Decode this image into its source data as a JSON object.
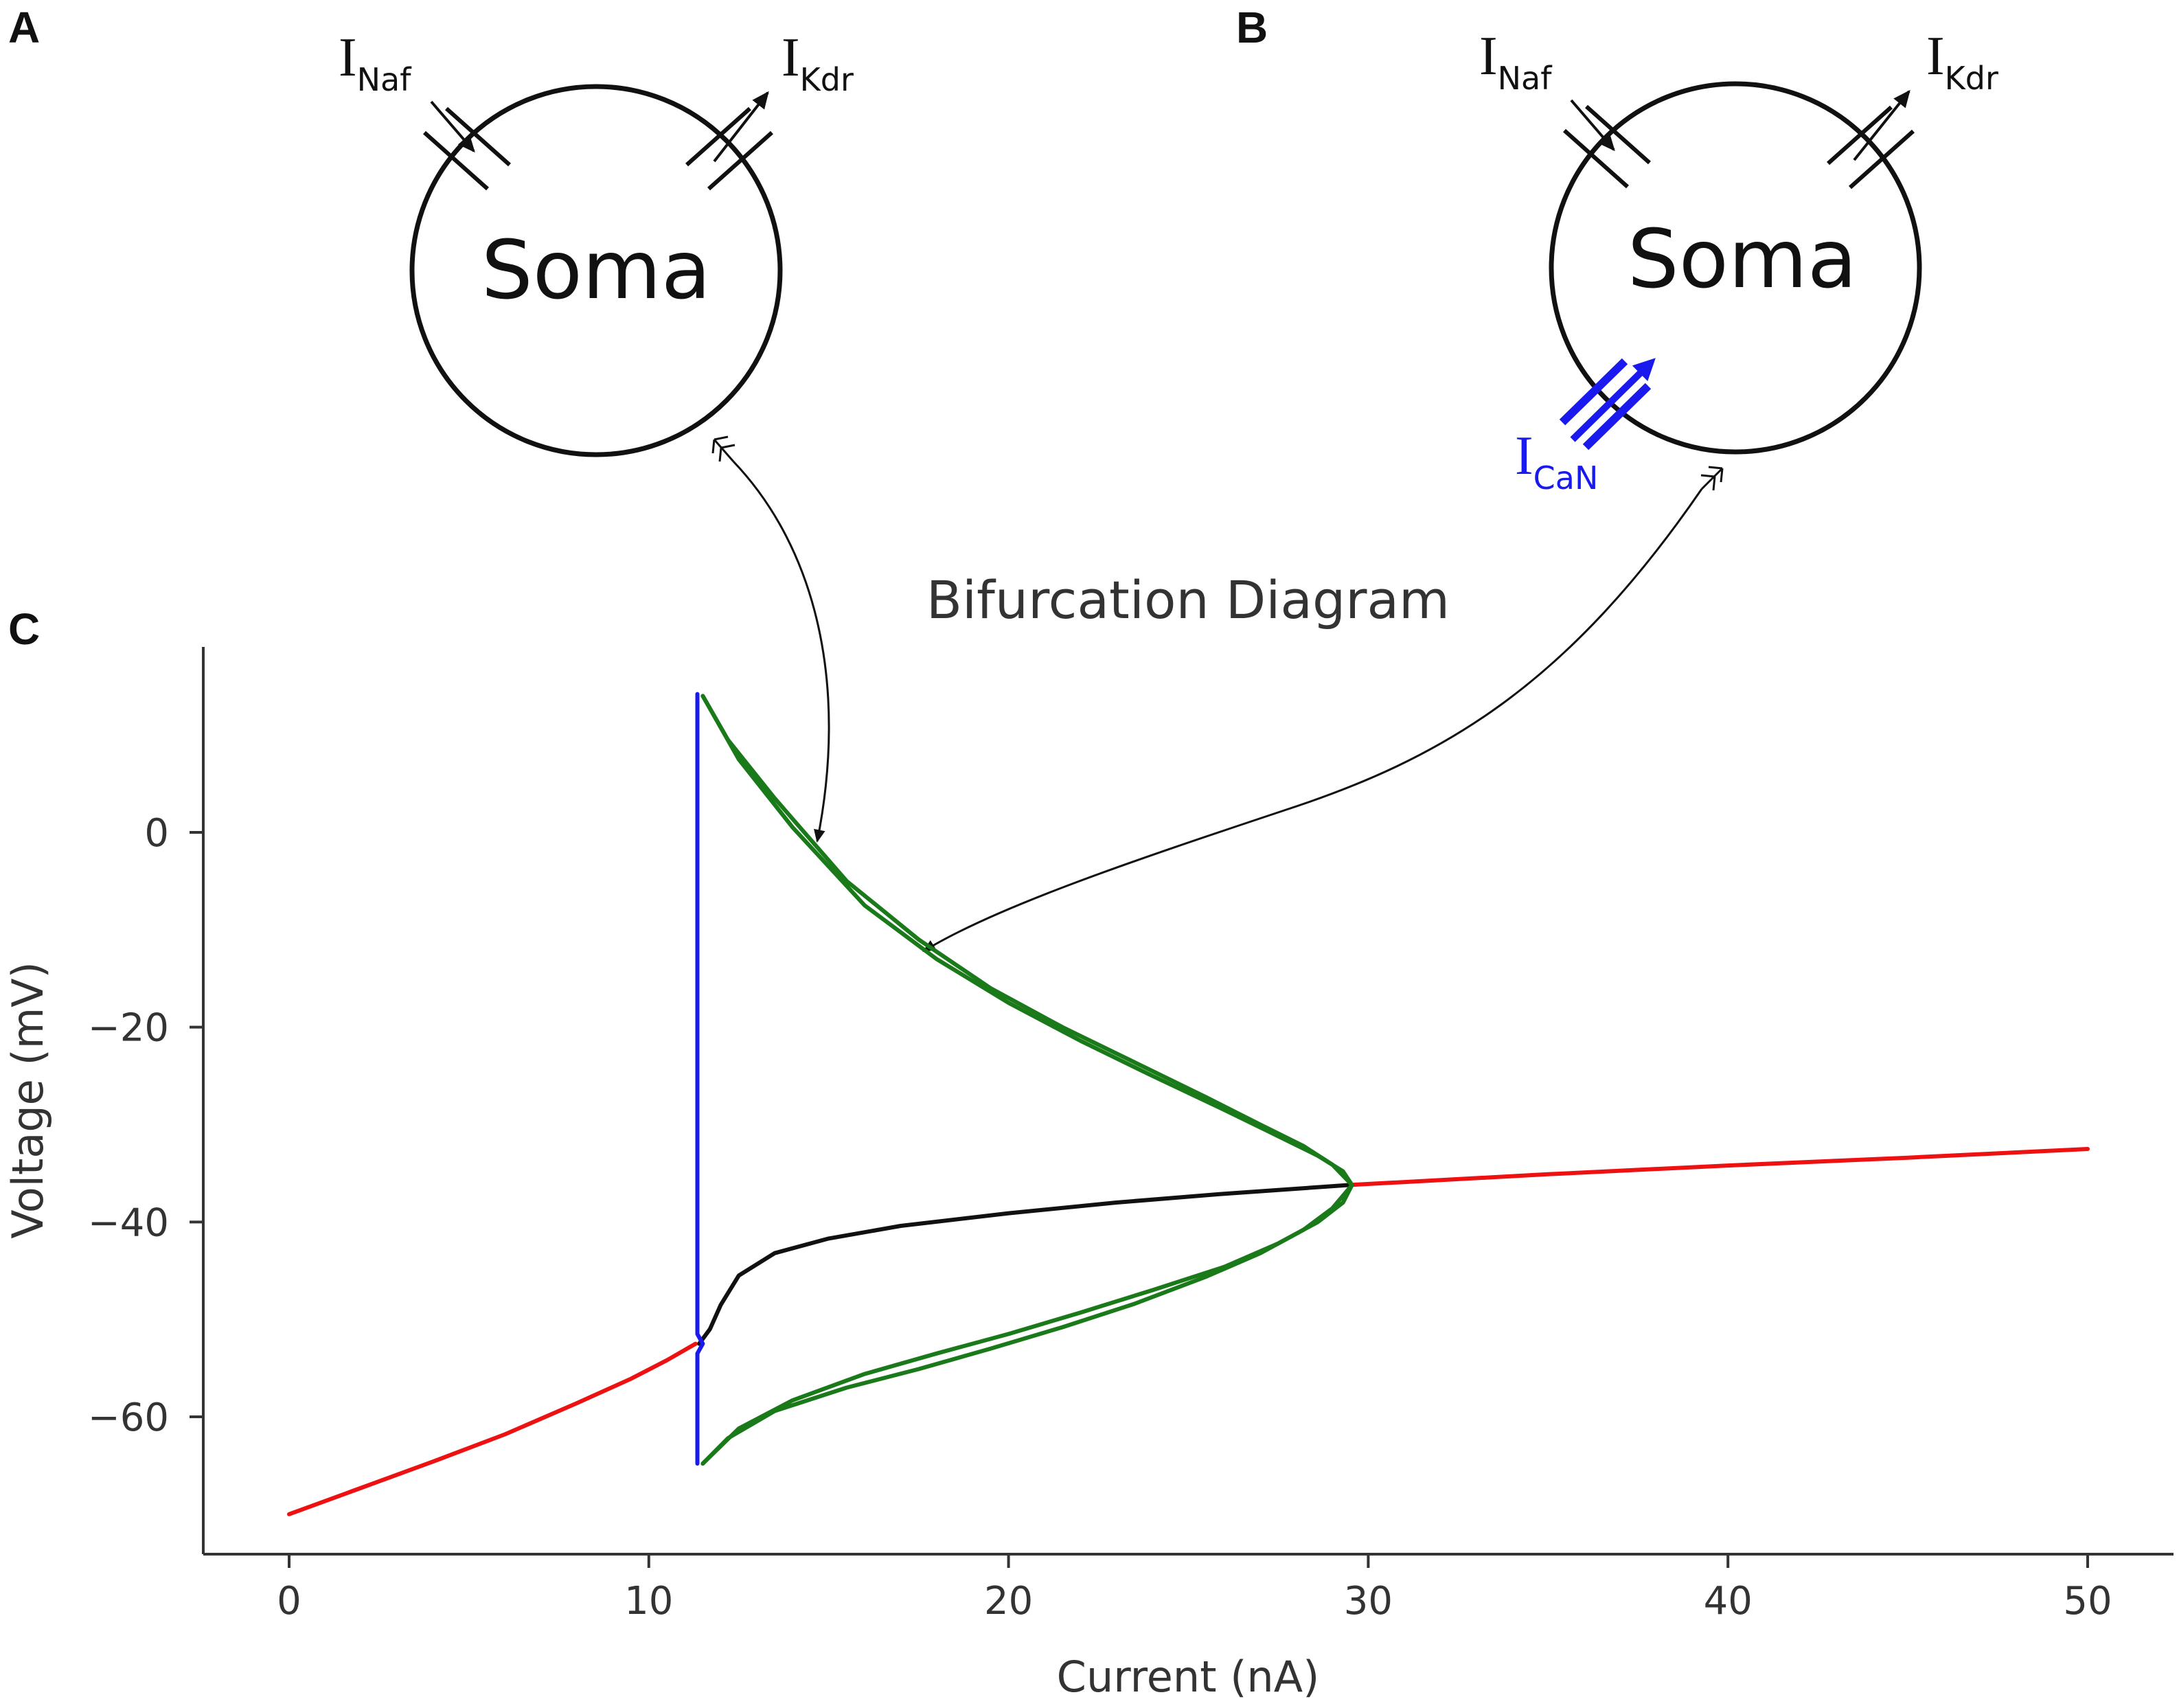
{
  "panels": {
    "a": {
      "letter": "A",
      "soma_label": "Soma",
      "currents": [
        {
          "main": "I",
          "sub": "Naf"
        },
        {
          "main": "I",
          "sub": "Kdr"
        }
      ]
    },
    "b": {
      "letter": "B",
      "soma_label": "Soma",
      "currents": [
        {
          "main": "I",
          "sub": "Naf"
        },
        {
          "main": "I",
          "sub": "Kdr"
        },
        {
          "main": "I",
          "sub": "CaN"
        }
      ]
    },
    "c": {
      "letter": "C"
    }
  },
  "colors": {
    "stable_fixed": "#ee1111",
    "unstable_fixed": "#111111",
    "limit_cycle": "#1a7a1a",
    "homoclinic": "#1a1aee",
    "ican": "#1a1aee"
  },
  "chart_data": {
    "type": "line",
    "title": "Bifurcation Diagram",
    "xlabel": "Current (nA)",
    "ylabel": "Voltage (mV)",
    "xlim": [
      -2.5,
      52.5
    ],
    "ylim": [
      -74,
      18.5
    ],
    "xticks": [
      0,
      10,
      20,
      30,
      40,
      50
    ],
    "yticks": [
      0,
      -20,
      -40,
      -60
    ],
    "grid": false,
    "series": [
      {
        "color": "#ee1111",
        "x": [
          0,
          2,
          4,
          6,
          8,
          9.5,
          10.5,
          11.3
        ],
        "y": [
          -70,
          -67.3,
          -64.6,
          -61.8,
          -58.6,
          -56.1,
          -54.2,
          -52.5
        ]
      },
      {
        "color": "#ee1111",
        "x": [
          29.5,
          35,
          40,
          45,
          50
        ],
        "y": [
          -36.2,
          -35.1,
          -34.2,
          -33.4,
          -32.5
        ]
      },
      {
        "color": "#111111",
        "x": [
          11.4,
          11.7,
          12.0,
          12.5,
          13.5,
          15,
          17,
          20,
          23,
          26,
          29.5
        ],
        "y": [
          -52.5,
          -51,
          -48.5,
          -45.5,
          -43.2,
          -41.7,
          -40.4,
          -39.1,
          -38.0,
          -37.1,
          -36.2
        ]
      },
      {
        "color": "#1a1aee",
        "x": [
          11.35,
          11.35,
          11.35,
          11.5,
          11.35,
          11.35,
          11.35
        ],
        "y": [
          14.2,
          -10,
          -51.5,
          -52.5,
          -53.5,
          -60,
          -64.8
        ]
      },
      {
        "color": "#1a7a1a",
        "x": [
          11.5,
          12.5,
          14,
          16,
          18,
          20,
          22,
          24,
          26,
          27.5,
          28.6,
          29.3,
          29.55,
          29.3,
          28.6,
          27.5,
          26,
          24,
          22,
          20,
          18,
          16,
          14,
          12.5,
          11.5
        ],
        "y": [
          14,
          7.5,
          0.5,
          -7.5,
          -13,
          -17.5,
          -21.4,
          -25,
          -28.5,
          -31.2,
          -33.2,
          -34.8,
          -36.2,
          -38,
          -40,
          -42.2,
          -44.6,
          -47,
          -49.3,
          -51.5,
          -53.5,
          -55.6,
          -58.3,
          -61.2,
          -64.8
        ]
      },
      {
        "color": "#1a7a1a",
        "x": [
          11.5,
          12.2,
          13.5,
          15.5,
          17.5,
          19.5,
          21.5,
          23.5,
          25.5,
          27,
          28.2,
          29.0,
          29.55,
          29.0,
          28.2,
          27,
          25.5,
          23.5,
          21.5,
          19.5,
          17.5,
          15.5,
          13.5,
          12.2,
          11.5
        ],
        "y": [
          14,
          9.5,
          3.5,
          -5,
          -11,
          -16,
          -20,
          -23.6,
          -27.2,
          -30,
          -32.2,
          -34.1,
          -36.2,
          -38.6,
          -40.8,
          -43.2,
          -45.6,
          -48.4,
          -50.8,
          -53,
          -55.1,
          -57,
          -59.4,
          -62.2,
          -64.8
        ]
      }
    ]
  }
}
